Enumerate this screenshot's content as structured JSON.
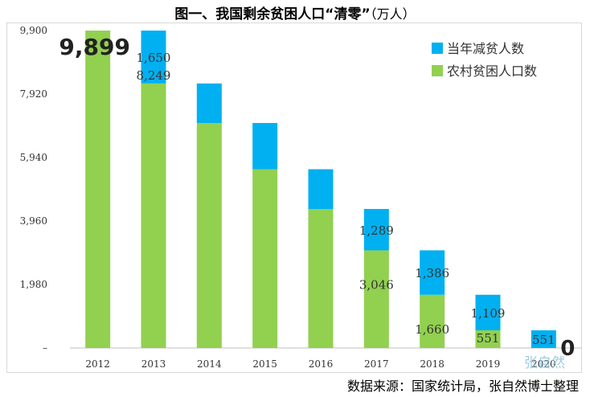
{
  "title": {
    "main": "图一、我国剩余贫困人口“清零”",
    "unit": "（万人）"
  },
  "source": "数据来源：国家统计局，张自然博士整理",
  "watermark": "张自然",
  "colors": {
    "reduction": "#00B0F0",
    "rural": "#92D050"
  },
  "chart_data": {
    "type": "bar",
    "stacked": true,
    "categories": [
      "2012",
      "2013",
      "2014",
      "2015",
      "2016",
      "2017",
      "2018",
      "2019",
      "2020"
    ],
    "series": [
      {
        "name": "农村贫困人口数",
        "values": [
          9899,
          8249,
          7017,
          5575,
          4335,
          3046,
          1660,
          551,
          0
        ]
      },
      {
        "name": "当年减贫人数",
        "values": [
          0,
          1650,
          1232,
          1442,
          1240,
          1289,
          1386,
          1109,
          551
        ]
      }
    ],
    "y_ticks": [
      "–",
      "1,980",
      "3,960",
      "5,940",
      "7,920",
      "9,900"
    ],
    "ylim": [
      0,
      9900
    ],
    "legend_position": "top-right",
    "grid": false,
    "annotations": [
      {
        "text": "9,899",
        "category": "2012",
        "style": "big"
      },
      {
        "text": "1,650",
        "category": "2013",
        "series": "当年减贫人数"
      },
      {
        "text": "8,249",
        "category": "2013",
        "series": "农村贫困人口数"
      },
      {
        "text": "1,289",
        "category": "2017",
        "series": "当年减贫人数"
      },
      {
        "text": "3,046",
        "category": "2017",
        "series": "农村贫困人口数"
      },
      {
        "text": "1,386",
        "category": "2018",
        "series": "当年减贫人数"
      },
      {
        "text": "1,660",
        "category": "2018",
        "series": "农村贫困人口数"
      },
      {
        "text": "1,109",
        "category": "2019",
        "series": "当年减贫人数"
      },
      {
        "text": "551",
        "category": "2019",
        "series": "农村贫困人口数"
      },
      {
        "text": "551",
        "category": "2020",
        "series": "当年减贫人数"
      },
      {
        "text": "0",
        "category": "2020",
        "style": "big"
      }
    ]
  }
}
